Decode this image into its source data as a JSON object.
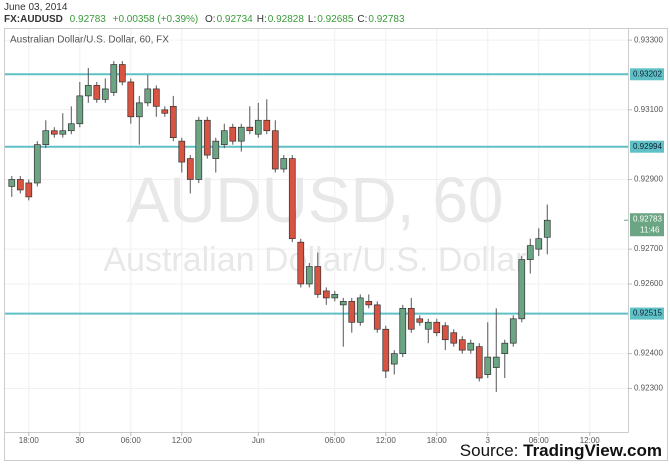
{
  "header": {
    "date": "June 03, 2014",
    "symbol": "FX:AUDUSD",
    "price": "0.92783",
    "change": "+0.00358 (+0.39%)",
    "quote": [
      {
        "label": "O:",
        "value": "0.92734"
      },
      {
        "label": "H:",
        "value": "0.92828"
      },
      {
        "label": "L:",
        "value": "0.92685"
      },
      {
        "label": "C:",
        "value": "0.92783"
      }
    ]
  },
  "footer": {
    "prefix": "Source:",
    "brand": "TradingView.com"
  },
  "chart_data": {
    "type": "candlestick",
    "title": "Australian Dollar/U.S. Dollar, 60, FX",
    "watermark": [
      "AUDUSD, 60",
      "Australian Dollar/U.S. Dollar"
    ],
    "up_color": "#6ba583",
    "down_color": "#d75442",
    "grid": true,
    "xlim": [
      -0.8,
      72.5
    ],
    "xticks": [
      {
        "value": 2,
        "label": "18:00"
      },
      {
        "value": 8,
        "label": "30"
      },
      {
        "value": 14,
        "label": "06:00"
      },
      {
        "value": 20,
        "label": "12:00"
      },
      {
        "value": 29,
        "label": "Jun"
      },
      {
        "value": 38,
        "label": "06:00"
      },
      {
        "value": 44,
        "label": "12:00"
      },
      {
        "value": 50,
        "label": "18:00"
      },
      {
        "value": 56,
        "label": "3"
      },
      {
        "value": 62,
        "label": "06:00"
      },
      {
        "value": 68,
        "label": "12:00"
      }
    ],
    "ylim": [
      0.92175,
      0.93332
    ],
    "yticks": [
      {
        "value": 0.933,
        "label": "0.93300"
      },
      {
        "value": 0.931,
        "label": "0.93100"
      },
      {
        "value": 0.929,
        "label": "0.92900"
      },
      {
        "value": 0.927,
        "label": "0.92700"
      },
      {
        "value": 0.926,
        "label": "0.92600"
      },
      {
        "value": 0.924,
        "label": "0.92400"
      },
      {
        "value": 0.923,
        "label": "0.92300"
      }
    ],
    "hlines": [
      0.93202,
      0.92994,
      0.92515
    ],
    "hline_color": "#5fc1c6",
    "last_price": 0.92783,
    "last_time": "11:46",
    "candles": {
      "x": [
        0,
        1,
        2,
        3,
        4,
        5,
        6,
        7,
        8,
        9,
        10,
        11,
        12,
        13,
        14,
        15,
        16,
        17,
        18,
        19,
        20,
        21,
        22,
        23,
        24,
        25,
        26,
        27,
        28,
        29,
        30,
        31,
        32,
        33,
        34,
        35,
        36,
        37,
        38,
        39,
        40,
        41,
        42,
        43,
        44,
        45,
        46,
        47,
        48,
        49,
        50,
        51,
        52,
        53,
        54,
        55,
        56,
        57,
        58,
        59,
        60,
        61,
        62,
        63
      ],
      "open": [
        0.9288,
        0.929,
        0.9289,
        0.9289,
        0.93,
        0.9304,
        0.9303,
        0.9304,
        0.9306,
        0.9314,
        0.9317,
        0.9313,
        0.9315,
        0.9323,
        0.9318,
        0.9308,
        0.9312,
        0.9316,
        0.931,
        0.9311,
        0.9301,
        0.9296,
        0.929,
        0.9307,
        0.9296,
        0.93,
        0.9305,
        0.9301,
        0.9305,
        0.9303,
        0.9307,
        0.9304,
        0.9293,
        0.9296,
        0.9272,
        0.926,
        0.9265,
        0.9258,
        0.9256,
        0.9254,
        0.9255,
        0.9249,
        0.9255,
        0.9254,
        0.9247,
        0.9237,
        0.924,
        0.9253,
        0.925,
        0.9247,
        0.9249,
        0.9248,
        0.9246,
        0.9244,
        0.9241,
        0.9242,
        0.9234,
        0.9236,
        0.924,
        0.9243,
        0.925,
        0.9267,
        0.927,
        0.92734
      ],
      "high": [
        0.9291,
        0.9291,
        0.929,
        0.9301,
        0.9307,
        0.9305,
        0.9309,
        0.9311,
        0.9318,
        0.9322,
        0.9318,
        0.9319,
        0.9324,
        0.9324,
        0.9319,
        0.9314,
        0.932,
        0.9317,
        0.9311,
        0.9314,
        0.9302,
        0.9297,
        0.9308,
        0.9308,
        0.9302,
        0.9306,
        0.9306,
        0.9306,
        0.9311,
        0.9312,
        0.9313,
        0.9307,
        0.9297,
        0.9297,
        0.9273,
        0.9266,
        0.9269,
        0.9259,
        0.9258,
        0.9256,
        0.9256,
        0.9257,
        0.9257,
        0.9255,
        0.9248,
        0.9241,
        0.9254,
        0.9256,
        0.9251,
        0.925,
        0.925,
        0.9249,
        0.9247,
        0.9245,
        0.9244,
        0.9243,
        0.9249,
        0.9253,
        0.9244,
        0.9251,
        0.9268,
        0.9273,
        0.9276,
        0.92828
      ],
      "low": [
        0.9285,
        0.9286,
        0.9284,
        0.9288,
        0.9299,
        0.9302,
        0.9302,
        0.9303,
        0.9305,
        0.9312,
        0.9312,
        0.9312,
        0.9314,
        0.9317,
        0.9306,
        0.93,
        0.9311,
        0.9308,
        0.9308,
        0.9301,
        0.9292,
        0.9286,
        0.9289,
        0.9296,
        0.9292,
        0.9299,
        0.93,
        0.9298,
        0.9303,
        0.9302,
        0.9303,
        0.9292,
        0.9292,
        0.9272,
        0.9259,
        0.9259,
        0.9256,
        0.9254,
        0.9255,
        0.9242,
        0.9246,
        0.9248,
        0.9253,
        0.9246,
        0.9233,
        0.9234,
        0.9239,
        0.9246,
        0.9248,
        0.9243,
        0.9245,
        0.9241,
        0.9242,
        0.924,
        0.924,
        0.9232,
        0.9233,
        0.9229,
        0.9233,
        0.9242,
        0.9249,
        0.9263,
        0.9268,
        0.92685
      ],
      "close": [
        0.929,
        0.9287,
        0.9285,
        0.93,
        0.9304,
        0.9303,
        0.9304,
        0.9306,
        0.9314,
        0.9317,
        0.9313,
        0.9316,
        0.9323,
        0.9318,
        0.9308,
        0.9312,
        0.9316,
        0.9311,
        0.9309,
        0.9302,
        0.9295,
        0.929,
        0.9307,
        0.9297,
        0.9301,
        0.9304,
        0.9301,
        0.9305,
        0.9304,
        0.9307,
        0.9304,
        0.9293,
        0.9296,
        0.9273,
        0.926,
        0.9265,
        0.9257,
        0.9256,
        0.9257,
        0.9255,
        0.9249,
        0.9256,
        0.9254,
        0.9247,
        0.9235,
        0.924,
        0.9253,
        0.9247,
        0.9249,
        0.9249,
        0.9246,
        0.9244,
        0.9243,
        0.9241,
        0.9243,
        0.9233,
        0.9239,
        0.9239,
        0.9243,
        0.925,
        0.9267,
        0.9271,
        0.9273,
        0.92783
      ]
    }
  }
}
